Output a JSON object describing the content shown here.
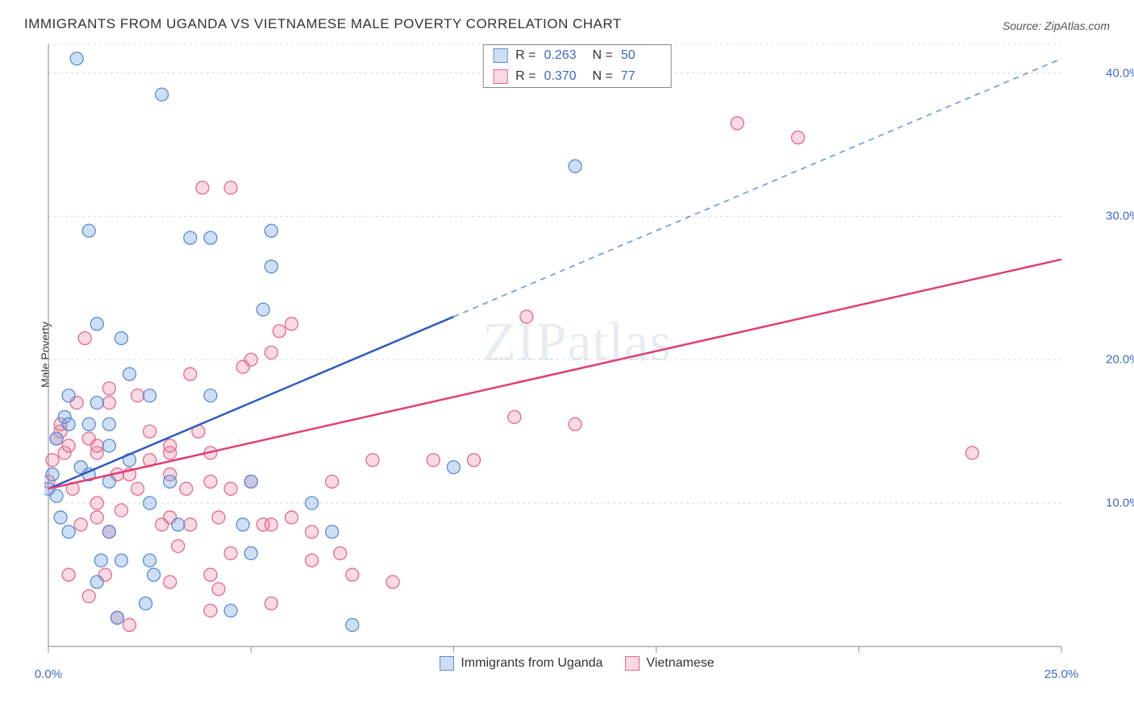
{
  "header": {
    "title": "IMMIGRANTS FROM UGANDA VS VIETNAMESE MALE POVERTY CORRELATION CHART",
    "source_prefix": "Source: ",
    "source_name": "ZipAtlas.com"
  },
  "chart": {
    "type": "scatter",
    "ylabel": "Male Poverty",
    "watermark": "ZIPatlas",
    "background_color": "#ffffff",
    "grid_color": "#d8d8d8",
    "axis_color": "#999999",
    "tick_label_color": "#3b6bcc",
    "x_axis": {
      "min": 0,
      "max": 25,
      "ticks": [
        0,
        5,
        10,
        15,
        20,
        25
      ],
      "tick_labels": [
        "0.0%",
        "",
        "",
        "",
        "",
        "25.0%"
      ]
    },
    "y_axis": {
      "min": 0,
      "max": 42,
      "ticks": [
        10,
        20,
        30,
        40
      ],
      "tick_labels": [
        "10.0%",
        "20.0%",
        "30.0%",
        "40.0%"
      ]
    },
    "series": [
      {
        "id": "uganda",
        "label": "Immigrants from Uganda",
        "fill_color": "rgba(116,162,222,0.35)",
        "stroke_color": "#5a8bd6",
        "marker_radius": 8,
        "stat_R": "0.263",
        "stat_N": "50",
        "trend": {
          "solid_color": "#2f5bbf",
          "dashed_color": "#6a9fd6",
          "width": 2.5,
          "start": [
            0,
            11
          ],
          "solid_end": [
            10,
            23
          ],
          "dash_end": [
            25,
            41
          ]
        },
        "points": [
          [
            0.0,
            11.0
          ],
          [
            0.1,
            12.0
          ],
          [
            0.2,
            10.5
          ],
          [
            0.2,
            14.5
          ],
          [
            0.3,
            9.0
          ],
          [
            0.4,
            16.0
          ],
          [
            0.5,
            8.0
          ],
          [
            0.5,
            15.5
          ],
          [
            0.5,
            17.5
          ],
          [
            0.7,
            41.0
          ],
          [
            0.8,
            12.5
          ],
          [
            1.0,
            12.0
          ],
          [
            1.0,
            15.5
          ],
          [
            1.0,
            29.0
          ],
          [
            1.2,
            4.5
          ],
          [
            1.2,
            17.0
          ],
          [
            1.2,
            22.5
          ],
          [
            1.3,
            6.0
          ],
          [
            1.5,
            8.0
          ],
          [
            1.5,
            11.5
          ],
          [
            1.5,
            14.0
          ],
          [
            1.5,
            15.5
          ],
          [
            1.7,
            2.0
          ],
          [
            1.8,
            6.0
          ],
          [
            1.8,
            21.5
          ],
          [
            2.0,
            19.0
          ],
          [
            2.0,
            13.0
          ],
          [
            2.4,
            3.0
          ],
          [
            2.5,
            6.0
          ],
          [
            2.5,
            10.0
          ],
          [
            2.5,
            17.5
          ],
          [
            2.6,
            5.0
          ],
          [
            2.8,
            38.5
          ],
          [
            3.0,
            11.5
          ],
          [
            3.2,
            8.5
          ],
          [
            3.5,
            28.5
          ],
          [
            4.0,
            17.5
          ],
          [
            4.0,
            28.5
          ],
          [
            4.5,
            2.5
          ],
          [
            5.0,
            6.5
          ],
          [
            5.0,
            11.5
          ],
          [
            5.3,
            23.5
          ],
          [
            5.5,
            26.5
          ],
          [
            5.5,
            29.0
          ],
          [
            6.5,
            10.0
          ],
          [
            7.5,
            1.5
          ],
          [
            10.0,
            12.5
          ],
          [
            13.0,
            33.5
          ],
          [
            7.0,
            8.0
          ],
          [
            4.8,
            8.5
          ]
        ]
      },
      {
        "id": "vietnamese",
        "label": "Vietnamese",
        "fill_color": "rgba(235,128,160,0.30)",
        "stroke_color": "#e26a8f",
        "marker_radius": 8,
        "stat_R": "0.370",
        "stat_N": "77",
        "trend": {
          "solid_color": "#e23d74",
          "dashed_color": "#e23d74",
          "width": 2.5,
          "start": [
            0,
            11
          ],
          "solid_end": [
            25,
            27
          ],
          "dash_end": [
            25,
            27
          ]
        },
        "points": [
          [
            0.0,
            11.5
          ],
          [
            0.1,
            13.0
          ],
          [
            0.2,
            14.5
          ],
          [
            0.3,
            15.0
          ],
          [
            0.3,
            15.5
          ],
          [
            0.4,
            13.5
          ],
          [
            0.5,
            5.0
          ],
          [
            0.5,
            14.0
          ],
          [
            0.6,
            11.0
          ],
          [
            0.7,
            17.0
          ],
          [
            0.8,
            8.5
          ],
          [
            0.9,
            21.5
          ],
          [
            1.0,
            3.5
          ],
          [
            1.0,
            14.5
          ],
          [
            1.2,
            9.0
          ],
          [
            1.2,
            10.0
          ],
          [
            1.2,
            13.5
          ],
          [
            1.2,
            14.0
          ],
          [
            1.4,
            5.0
          ],
          [
            1.5,
            8.0
          ],
          [
            1.5,
            17.0
          ],
          [
            1.5,
            18.0
          ],
          [
            1.7,
            2.0
          ],
          [
            1.7,
            12.0
          ],
          [
            1.8,
            9.5
          ],
          [
            2.0,
            1.5
          ],
          [
            2.0,
            12.0
          ],
          [
            2.2,
            11.0
          ],
          [
            2.2,
            17.5
          ],
          [
            2.5,
            13.0
          ],
          [
            2.5,
            15.0
          ],
          [
            2.8,
            8.5
          ],
          [
            3.0,
            4.5
          ],
          [
            3.0,
            9.0
          ],
          [
            3.0,
            12.0
          ],
          [
            3.0,
            13.5
          ],
          [
            3.0,
            14.0
          ],
          [
            3.2,
            7.0
          ],
          [
            3.4,
            11.0
          ],
          [
            3.5,
            8.5
          ],
          [
            3.5,
            19.0
          ],
          [
            3.7,
            15.0
          ],
          [
            3.8,
            32.0
          ],
          [
            4.0,
            5.0
          ],
          [
            4.0,
            11.5
          ],
          [
            4.0,
            13.5
          ],
          [
            4.2,
            4.0
          ],
          [
            4.2,
            9.0
          ],
          [
            4.5,
            6.5
          ],
          [
            4.5,
            11.0
          ],
          [
            4.5,
            32.0
          ],
          [
            4.8,
            19.5
          ],
          [
            5.0,
            11.5
          ],
          [
            5.0,
            20.0
          ],
          [
            5.3,
            8.5
          ],
          [
            5.5,
            3.0
          ],
          [
            5.5,
            8.5
          ],
          [
            5.5,
            20.5
          ],
          [
            5.7,
            22.0
          ],
          [
            6.0,
            9.0
          ],
          [
            6.0,
            22.5
          ],
          [
            6.5,
            6.0
          ],
          [
            6.5,
            8.0
          ],
          [
            7.0,
            11.5
          ],
          [
            7.2,
            6.5
          ],
          [
            7.5,
            5.0
          ],
          [
            8.0,
            13.0
          ],
          [
            8.5,
            4.5
          ],
          [
            9.5,
            13.0
          ],
          [
            10.5,
            13.0
          ],
          [
            11.5,
            16.0
          ],
          [
            11.8,
            23.0
          ],
          [
            13.0,
            15.5
          ],
          [
            17.0,
            36.5
          ],
          [
            18.5,
            35.5
          ],
          [
            22.8,
            13.5
          ],
          [
            4.0,
            2.5
          ]
        ]
      }
    ],
    "legend_top": {
      "R_label": "R =",
      "N_label": "N ="
    }
  }
}
